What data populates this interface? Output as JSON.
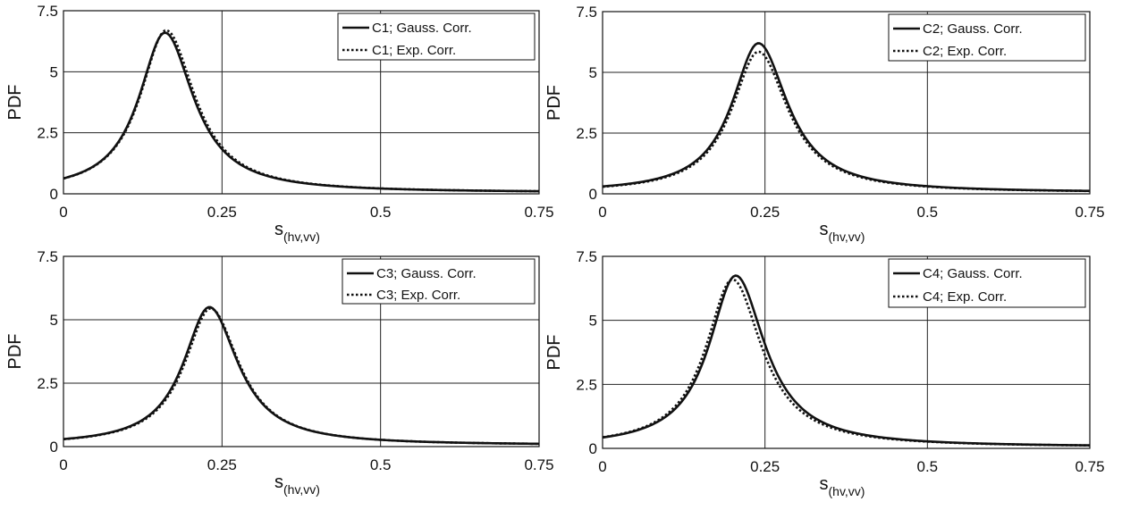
{
  "chart_data": [
    {
      "type": "line",
      "ylabel": "PDF",
      "xlabel_main": "s",
      "xlabel_sub": "(hv,vv)",
      "xlim": [
        0,
        0.75
      ],
      "ylim": [
        0,
        7.5
      ],
      "xticks": [
        0,
        0.25,
        0.5,
        0.75
      ],
      "xtick_labels": [
        "0",
        "0.25",
        "0.5",
        "0.75"
      ],
      "yticks": [
        0,
        2.5,
        5,
        7.5
      ],
      "ytick_labels": [
        "0",
        "2.5",
        "5",
        "7.5"
      ],
      "grid": true,
      "legend_position": "top-right",
      "series": [
        {
          "name": "C1; Gauss. Corr.",
          "style": "solid",
          "peak_x": 0.16,
          "peak_y": 6.6,
          "tail_y": 0.05,
          "x": [
            0,
            0.05,
            0.1,
            0.13,
            0.16,
            0.2,
            0.25,
            0.3,
            0.4,
            0.5,
            0.75
          ],
          "y": [
            0.35,
            0.9,
            2.9,
            5.3,
            6.6,
            4.8,
            2.0,
            0.95,
            0.4,
            0.18,
            0.05
          ]
        },
        {
          "name": "C1; Exp. Corr.",
          "style": "dotted",
          "peak_x": 0.162,
          "peak_y": 6.7,
          "tail_y": 0.05,
          "x": [
            0,
            0.05,
            0.1,
            0.13,
            0.16,
            0.2,
            0.25,
            0.3,
            0.4,
            0.5,
            0.75
          ],
          "y": [
            0.35,
            0.95,
            2.9,
            5.2,
            6.7,
            4.9,
            2.0,
            0.95,
            0.4,
            0.18,
            0.05
          ]
        }
      ]
    },
    {
      "type": "line",
      "ylabel": "PDF",
      "xlabel_main": "s",
      "xlabel_sub": "(hv,vv)",
      "xlim": [
        0,
        0.75
      ],
      "ylim": [
        0,
        7.5
      ],
      "xticks": [
        0,
        0.25,
        0.5,
        0.75
      ],
      "xtick_labels": [
        "0",
        "0.25",
        "0.5",
        "0.75"
      ],
      "yticks": [
        0,
        2.5,
        5,
        7.5
      ],
      "ytick_labels": [
        "0",
        "2.5",
        "5",
        "7.5"
      ],
      "grid": true,
      "legend_position": "top-right",
      "series": [
        {
          "name": "C2; Gauss. Corr.",
          "style": "solid",
          "peak_x": 0.24,
          "peak_y": 6.2,
          "tail_y": 0.05,
          "x": [
            0,
            0.1,
            0.15,
            0.2,
            0.24,
            0.28,
            0.35,
            0.45,
            0.55,
            0.75
          ],
          "y": [
            0.15,
            0.6,
            1.9,
            4.6,
            6.2,
            4.7,
            1.6,
            0.5,
            0.2,
            0.05
          ]
        },
        {
          "name": "C2; Exp. Corr.",
          "style": "dotted",
          "peak_x": 0.24,
          "peak_y": 5.85,
          "tail_y": 0.05,
          "x": [
            0,
            0.1,
            0.15,
            0.2,
            0.24,
            0.28,
            0.35,
            0.45,
            0.55,
            0.75
          ],
          "y": [
            0.2,
            0.75,
            2.1,
            4.6,
            5.85,
            4.5,
            1.6,
            0.5,
            0.2,
            0.05
          ]
        }
      ]
    },
    {
      "type": "line",
      "ylabel": "PDF",
      "xlabel_main": "s",
      "xlabel_sub": "(hv,vv)",
      "xlim": [
        0,
        0.75
      ],
      "ylim": [
        0,
        7.5
      ],
      "xticks": [
        0,
        0.25,
        0.5,
        0.75
      ],
      "xtick_labels": [
        "0",
        "0.25",
        "0.5",
        "0.75"
      ],
      "yticks": [
        0,
        2.5,
        5,
        7.5
      ],
      "ytick_labels": [
        "0",
        "2.5",
        "5",
        "7.5"
      ],
      "grid": true,
      "legend_position": "top-right",
      "series": [
        {
          "name": "C3; Gauss. Corr.",
          "style": "solid",
          "peak_x": 0.23,
          "peak_y": 5.5,
          "tail_y": 0.05,
          "x": [
            0,
            0.1,
            0.15,
            0.2,
            0.23,
            0.27,
            0.35,
            0.45,
            0.55,
            0.75
          ],
          "y": [
            0.25,
            0.8,
            2.2,
            4.6,
            5.5,
            4.5,
            1.7,
            0.55,
            0.25,
            0.05
          ]
        },
        {
          "name": "C3; Exp. Corr.",
          "style": "dotted",
          "peak_x": 0.232,
          "peak_y": 5.45,
          "tail_y": 0.05,
          "x": [
            0,
            0.1,
            0.15,
            0.2,
            0.23,
            0.27,
            0.35,
            0.45,
            0.55,
            0.75
          ],
          "y": [
            0.25,
            0.85,
            2.3,
            4.6,
            5.45,
            4.5,
            1.7,
            0.55,
            0.25,
            0.05
          ]
        }
      ]
    },
    {
      "type": "line",
      "ylabel": "PDF",
      "xlabel_main": "s",
      "xlabel_sub": "(hv,vv)",
      "xlim": [
        0,
        0.75
      ],
      "ylim": [
        0,
        7.5
      ],
      "xticks": [
        0,
        0.25,
        0.5,
        0.75
      ],
      "xtick_labels": [
        "0",
        "0.25",
        "0.5",
        "0.75"
      ],
      "yticks": [
        0,
        2.5,
        5,
        7.5
      ],
      "ytick_labels": [
        "0",
        "2.5",
        "5",
        "7.5"
      ],
      "grid": true,
      "legend_position": "top-right",
      "series": [
        {
          "name": "C4; Gauss. Corr.",
          "style": "solid",
          "peak_x": 0.205,
          "peak_y": 6.75,
          "tail_y": 0.05,
          "x": [
            0,
            0.1,
            0.15,
            0.18,
            0.205,
            0.23,
            0.25,
            0.3,
            0.4,
            0.5,
            0.75
          ],
          "y": [
            0.2,
            0.9,
            2.8,
            5.4,
            6.75,
            6.0,
            4.3,
            1.4,
            0.45,
            0.2,
            0.05
          ]
        },
        {
          "name": "C4; Exp. Corr.",
          "style": "dotted",
          "peak_x": 0.2,
          "peak_y": 6.6,
          "tail_y": 0.05,
          "x": [
            0,
            0.1,
            0.15,
            0.18,
            0.2,
            0.23,
            0.25,
            0.3,
            0.4,
            0.5,
            0.75
          ],
          "y": [
            0.2,
            1.1,
            3.3,
            5.7,
            6.6,
            5.6,
            3.9,
            1.3,
            0.45,
            0.2,
            0.05
          ]
        }
      ]
    }
  ]
}
